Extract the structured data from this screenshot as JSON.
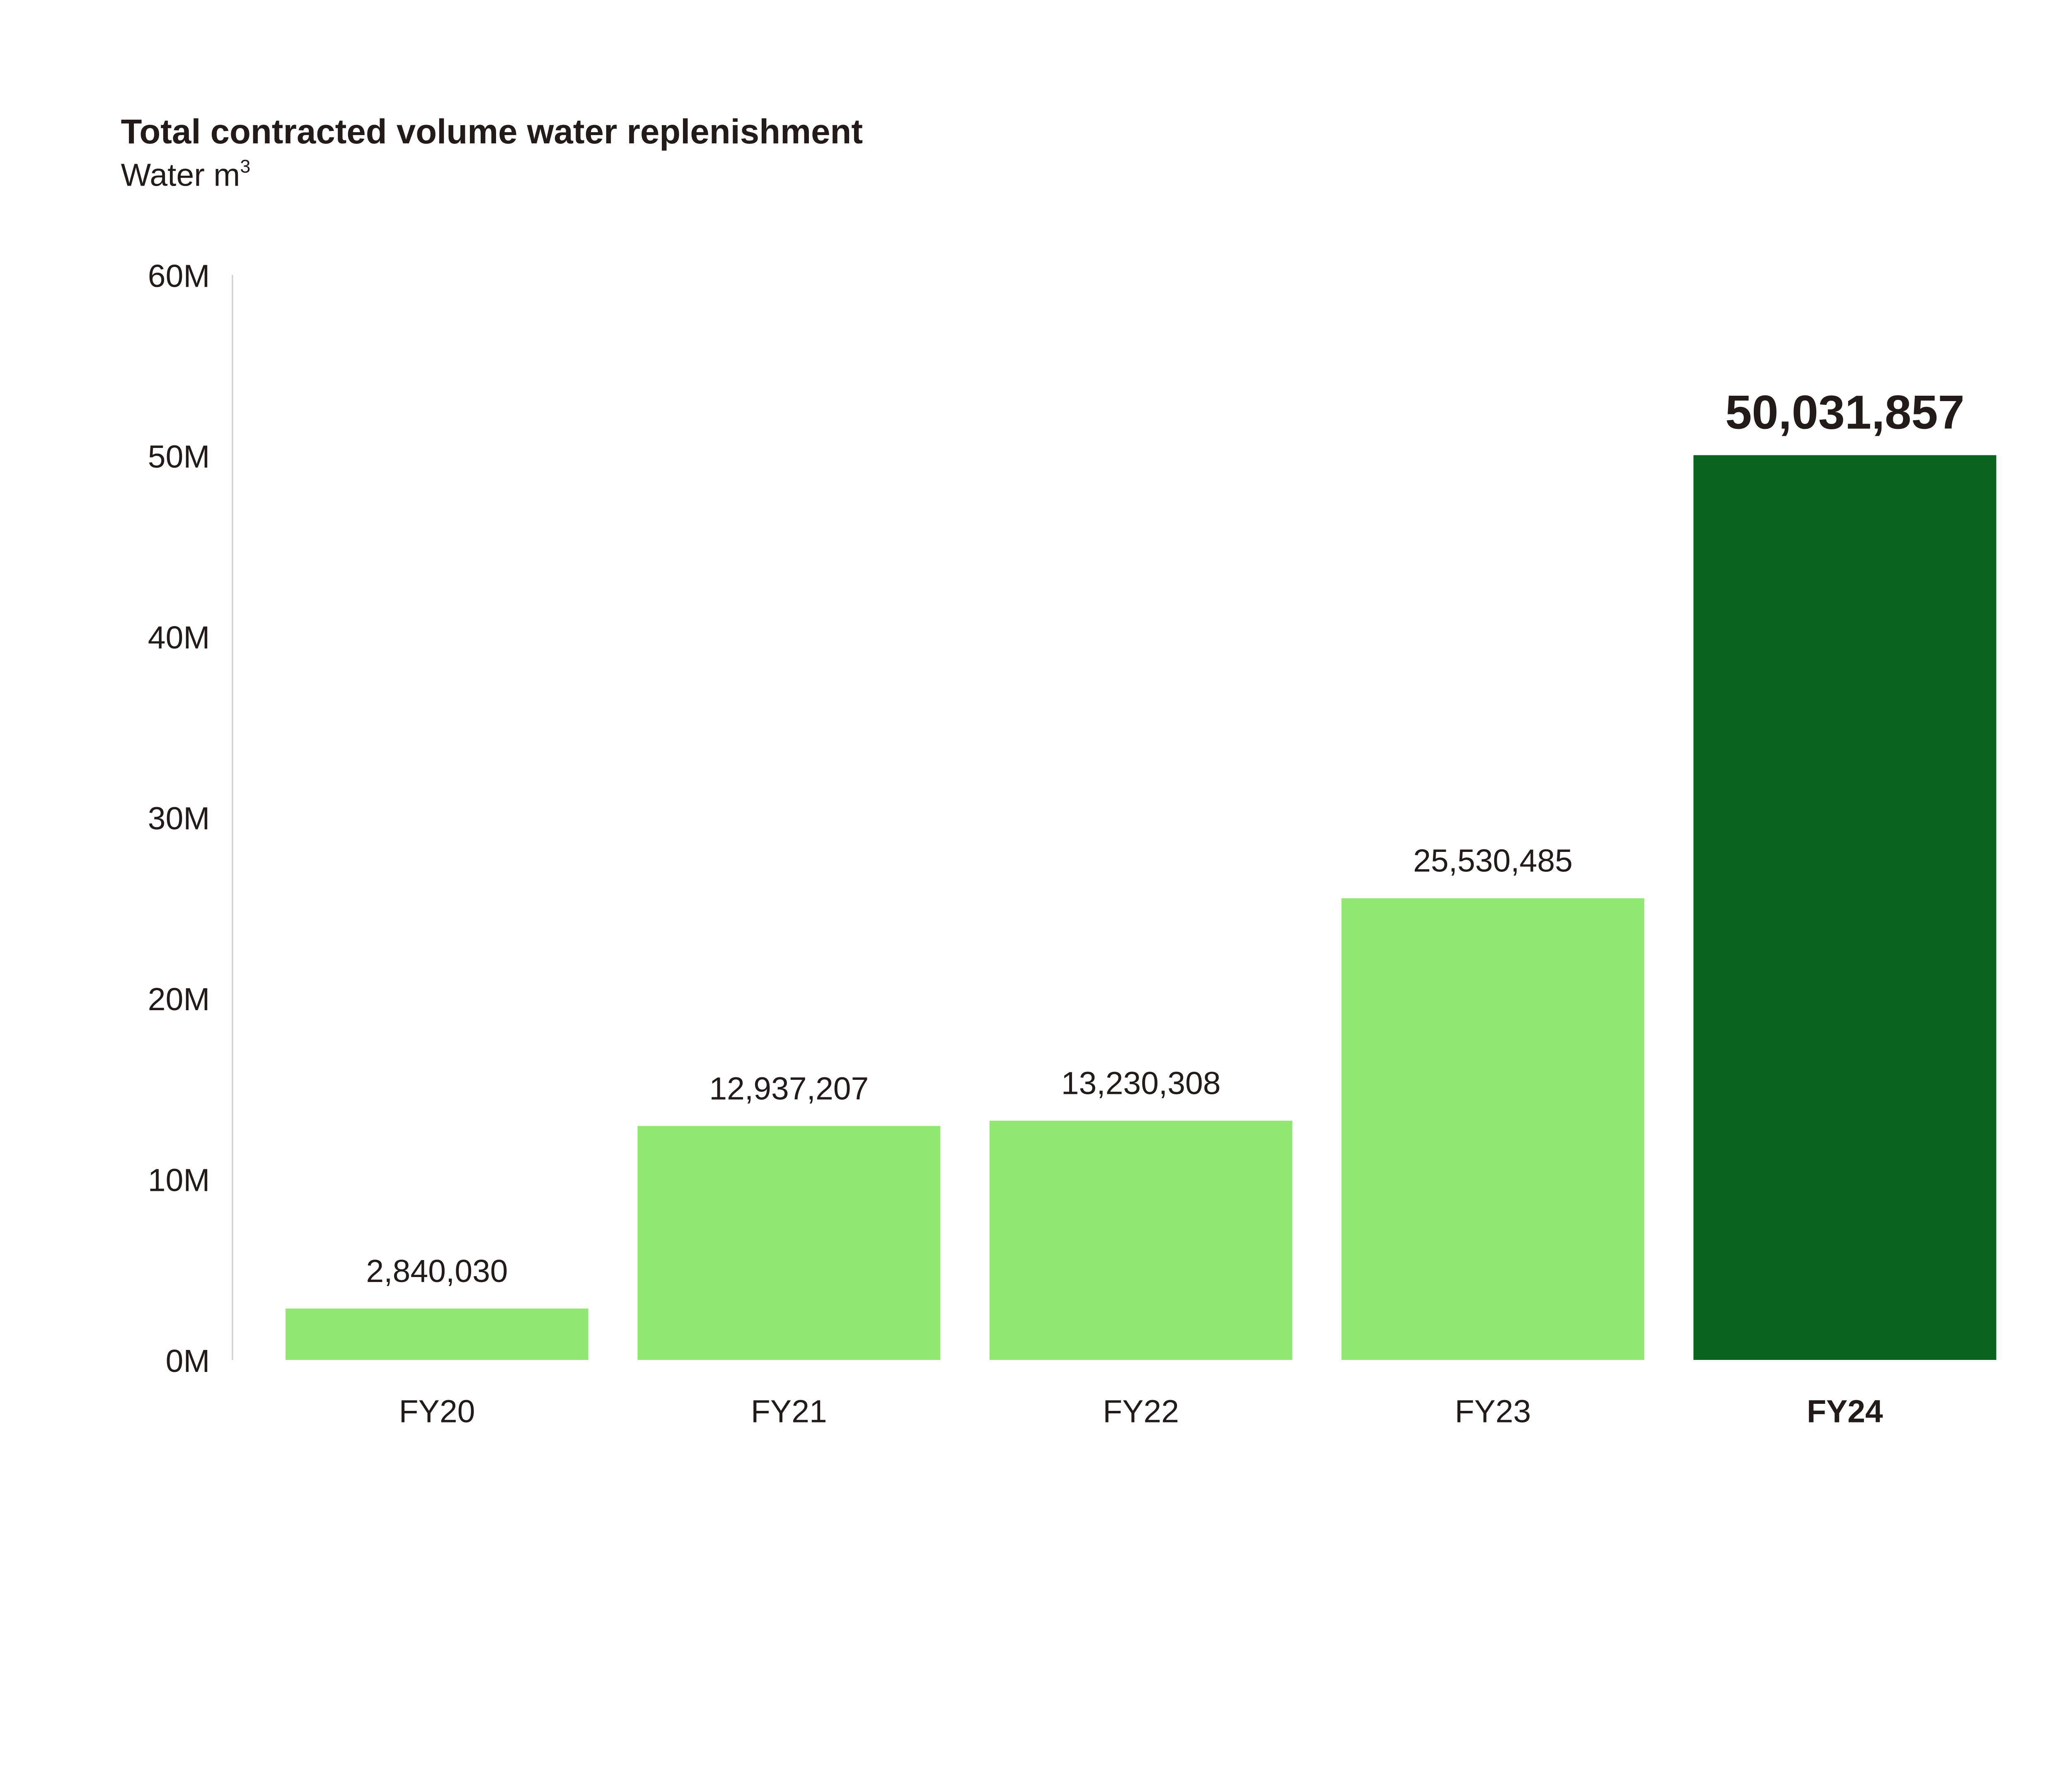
{
  "chart_data": {
    "type": "bar",
    "title": "Total contracted volume water replenishment",
    "subtitle": "Water m",
    "subtitle_superscript": "3",
    "xlabel": "",
    "ylabel": "",
    "categories": [
      "FY20",
      "FY21",
      "FY22",
      "FY23",
      "FY24"
    ],
    "values": [
      2840030,
      12937207,
      13230308,
      25530485,
      50031857
    ],
    "data_labels": [
      "2,840,030",
      "12,937,207",
      "13,230,308",
      "25,530,485",
      "50,031,857"
    ],
    "highlighted_category": "FY24",
    "ylim": [
      0,
      60000000
    ],
    "yticks": [
      0,
      10000000,
      20000000,
      30000000,
      40000000,
      50000000,
      60000000
    ],
    "ytick_labels": [
      "0M",
      "10M",
      "20M",
      "30M",
      "40M",
      "50M",
      "60M"
    ],
    "grid": false,
    "legend": "none",
    "colors": {
      "bar": "#90e872",
      "highlight_bar": "#0a6420",
      "text": "#231a1a",
      "axis": "#cccccc"
    }
  }
}
